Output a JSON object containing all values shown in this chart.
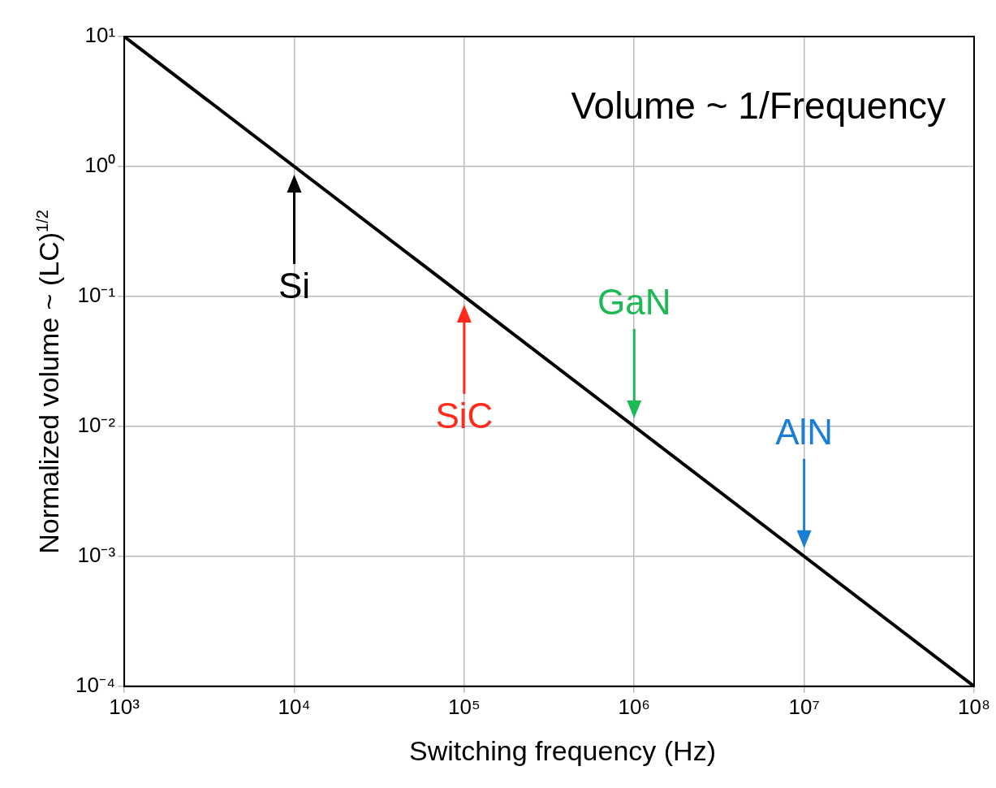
{
  "chart_data": {
    "type": "line",
    "xlabel": "Switching frequency (Hz)",
    "ylabel": "Normalized volume ~ (LC)$^{1/2}$",
    "x": [
      1000,
      100000000
    ],
    "series": [
      {
        "color": "#000000",
        "values": [
          10,
          0.0001
        ]
      }
    ],
    "log": "xy",
    "xlim": [
      1000,
      100000000
    ],
    "ylim": [
      0.0001,
      10
    ],
    "xticks": [
      {
        "value": 1000,
        "label": "10³"
      },
      {
        "value": 10000,
        "label": "10⁴"
      },
      {
        "value": 100000,
        "label": "10⁵"
      },
      {
        "value": 1000000,
        "label": "10⁶"
      },
      {
        "value": 10000000,
        "label": "10⁷"
      },
      {
        "value": 100000000,
        "label": "10⁸"
      }
    ],
    "yticks": [
      {
        "value": 0.0001,
        "label": "10⁻⁴"
      },
      {
        "value": 0.001,
        "label": "10⁻³"
      },
      {
        "value": 0.01,
        "label": "10⁻²"
      },
      {
        "value": 0.1,
        "label": "10⁻¹"
      },
      {
        "value": 1,
        "label": "10⁰"
      },
      {
        "value": 10,
        "label": "10¹"
      }
    ],
    "grid": true,
    "marker": "none",
    "line_style": "solid",
    "annotations": [
      "Volume ~ 1/Frequency",
      {
        "text": "Si",
        "x": 10000,
        "y": 1
      },
      {
        "text": "SiC",
        "x": 100000,
        "y": 0.1
      },
      {
        "text": "GaN",
        "x": 1000000,
        "y": 0.01
      },
      {
        "text": "AlN",
        "x": 10000000,
        "y": 0.001
      }
    ]
  }
}
